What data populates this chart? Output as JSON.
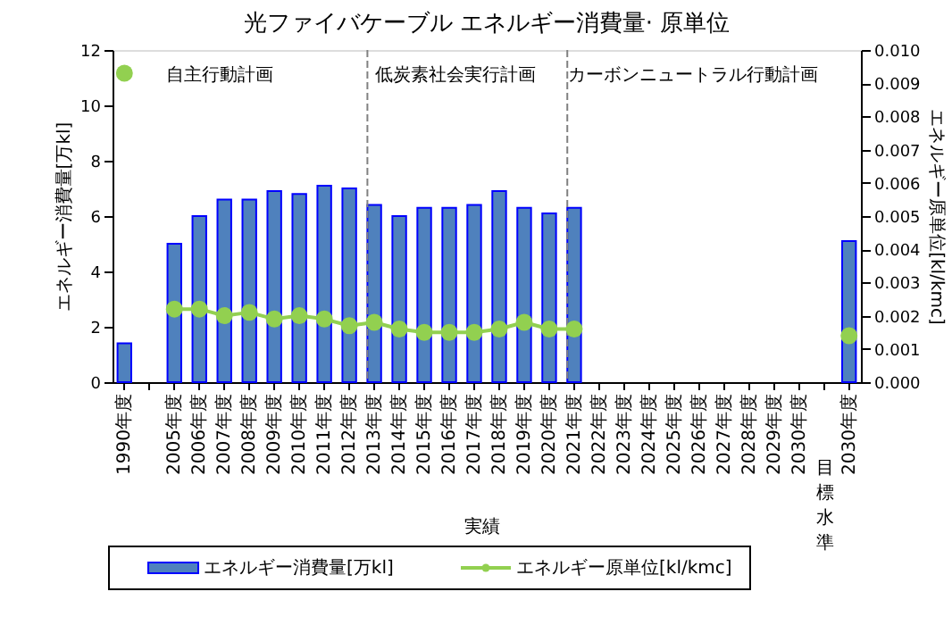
{
  "chart_data": {
    "type": "bar",
    "title": "光ファイバケーブル エネルギー消費量· 原単位",
    "categories": [
      "1990年度",
      null,
      "2005年度",
      "2006年度",
      "2007年度",
      "2008年度",
      "2009年度",
      "2010年度",
      "2011年度",
      "2012年度",
      "2013年度",
      "2014年度",
      "2015年度",
      "2016年度",
      "2017年度",
      "2018年度",
      "2019年度",
      "2020年度",
      "2021年度",
      "2022年度",
      "2023年度",
      "2024年度",
      "2025年度",
      "2026年度",
      "2027年度",
      "2028年度",
      "2029年度",
      "2030年度",
      null,
      "2030年度"
    ],
    "series": [
      {
        "name": "エネルギー消費量[万kl]",
        "color": "#4f81bd",
        "values": [
          1.4,
          null,
          5.0,
          6.0,
          6.6,
          6.6,
          6.9,
          6.8,
          7.1,
          7.0,
          6.4,
          6.0,
          6.3,
          6.3,
          6.4,
          6.9,
          6.3,
          6.1,
          6.3,
          null,
          null,
          null,
          null,
          null,
          null,
          null,
          null,
          null,
          null,
          5.1
        ]
      },
      {
        "name": "エネルギー原単位[kl/kmc]",
        "type": "line",
        "axis": "y2",
        "color": "#92d050",
        "marker": "circle",
        "values": [
          0.0093,
          null,
          0.0022,
          0.0022,
          0.002,
          0.0021,
          0.0019,
          0.002,
          0.0019,
          0.0017,
          0.0018,
          0.0016,
          0.0015,
          0.0015,
          0.0015,
          0.0016,
          0.0018,
          0.0016,
          0.0016,
          null,
          null,
          null,
          null,
          null,
          null,
          null,
          null,
          null,
          null,
          0.0014
        ]
      }
    ],
    "ylabel": "エネルギー消費量[万kl]",
    "y2label": "エネルギー原単位[kl/kmc]",
    "ylim": [
      0,
      12
    ],
    "yticks": [
      0,
      2,
      4,
      6,
      8,
      10,
      12
    ],
    "y2lim": [
      0,
      0.01
    ],
    "y2ticks": [
      {
        "value": 0,
        "label": "0.000"
      },
      {
        "value": 0.001,
        "label": "0.001"
      },
      {
        "value": 0.002,
        "label": "0.002"
      },
      {
        "value": 0.003,
        "label": "0.003"
      },
      {
        "value": 0.004,
        "label": "0.004"
      },
      {
        "value": 0.005,
        "label": "0.005"
      },
      {
        "value": 0.006,
        "label": "0.006"
      },
      {
        "value": 0.007,
        "label": "0.007"
      },
      {
        "value": 0.008,
        "label": "0.008"
      },
      {
        "value": 0.009,
        "label": "0.009"
      },
      {
        "value": 0.01,
        "label": "0.010"
      }
    ],
    "ref_lines": [
      {
        "axis": "x",
        "value": "2013年度",
        "color": "#808080",
        "line_style": "dashed"
      },
      {
        "axis": "x",
        "value": "2021年度",
        "color": "#808080",
        "line_style": "dashed"
      }
    ],
    "annotations": [
      "自主行動計画",
      "低炭素社会実行計画",
      "カーボンニュートラル行動計画",
      "実績",
      "目標水準"
    ],
    "legend": "bottom",
    "grid": false
  }
}
